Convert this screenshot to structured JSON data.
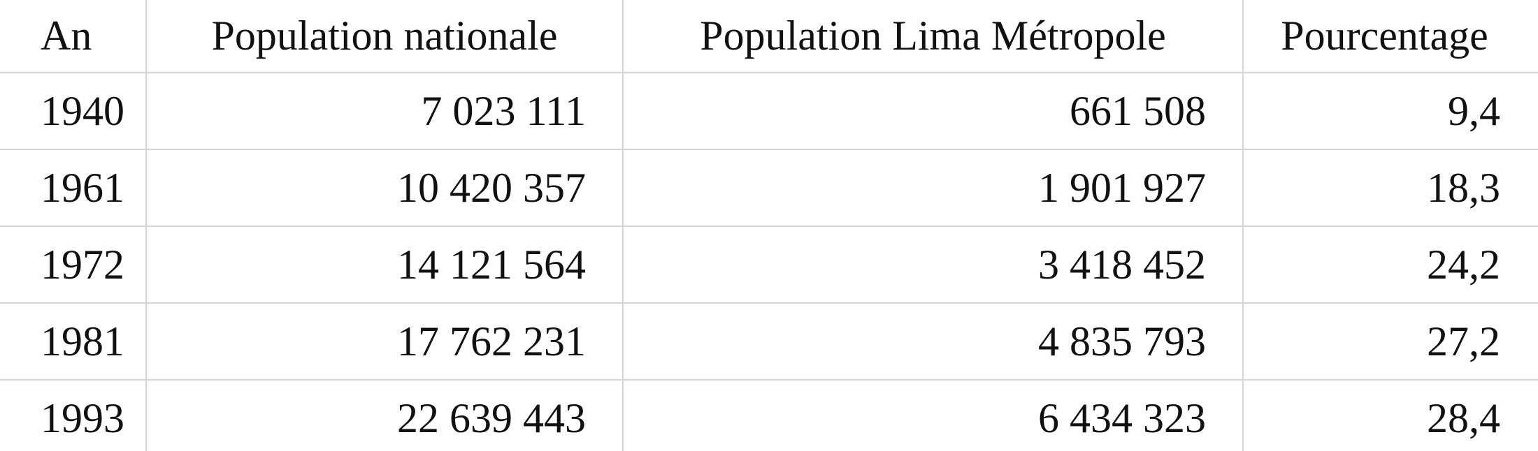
{
  "table": {
    "header": [
      "An",
      "Population nationale",
      "Population Lima Métropole",
      "Pourcentage"
    ],
    "rows": [
      [
        "1940",
        "7 023 111",
        "661 508",
        "9,4"
      ],
      [
        "1961",
        "10 420 357",
        "1 901 927",
        "18,3"
      ],
      [
        "1972",
        "14 121 564",
        "3 418 452",
        "24,2"
      ],
      [
        "1981",
        "17 762 231",
        "4 835 793",
        "27,2"
      ],
      [
        "1993",
        "22 639 443",
        "6 434 323",
        "28,4"
      ]
    ]
  }
}
